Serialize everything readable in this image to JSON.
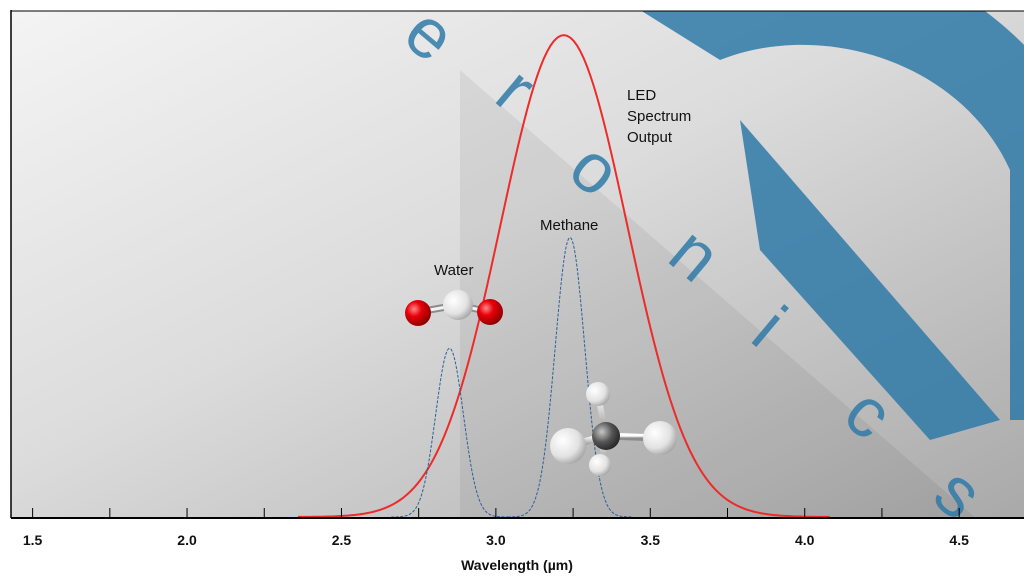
{
  "chart_data": {
    "type": "line",
    "title": "",
    "xlabel": "Wavelength (µm)",
    "ylabel": "",
    "xlim": [
      1.43,
      4.71
    ],
    "ylim": [
      0,
      1.05
    ],
    "x_ticks": [
      1.5,
      2.0,
      2.5,
      3.0,
      3.5,
      4.0,
      4.5
    ],
    "x_tick_labels": [
      "1.5",
      "2.0",
      "2.5",
      "3.0",
      "3.5",
      "4.0",
      "4.5"
    ],
    "grid": false,
    "series": [
      {
        "name": "LED Spectrum Output",
        "color": "#ee2a2a",
        "style": "solid",
        "center": 3.22,
        "sigma": 0.205,
        "peak": 1.0
      },
      {
        "name": "Methane",
        "color": "#2e5f9a",
        "style": "dashed",
        "center": 3.24,
        "sigma": 0.048,
        "peak": 0.58
      },
      {
        "name": "Water",
        "color": "#2e5f9a",
        "style": "dashed",
        "center": 2.85,
        "sigma": 0.045,
        "peak": 0.35
      }
    ],
    "annotations": {
      "led": [
        "LED",
        "Spectrum",
        "Output"
      ],
      "methane": "Methane",
      "water": "Water"
    }
  },
  "colors": {
    "oxygen_atom": "#e8000a",
    "carbon_atom": "#555555",
    "hydrogen_atom": "#f0f0f0",
    "watermark": "#2f7aa8"
  },
  "icons": {
    "water_molecule": "water-molecule-icon",
    "methane_molecule": "methane-molecule-icon"
  }
}
